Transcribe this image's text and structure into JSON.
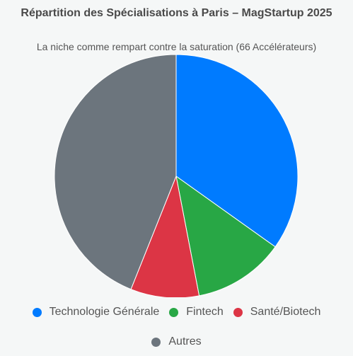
{
  "chart_data": {
    "type": "pie",
    "title": "Répartition des Spécialisations à Paris – MagStartup 2025",
    "subtitle": "La niche comme rempart contre la saturation (66 Accélérateurs)",
    "categories": [
      "Technologie Générale",
      "Fintech",
      "Santé/Biotech",
      "Autres"
    ],
    "values": [
      23,
      8,
      6,
      29
    ],
    "colors": [
      "#007bff",
      "#28a745",
      "#dc3545",
      "#6c757d"
    ],
    "legend_position": "bottom"
  }
}
